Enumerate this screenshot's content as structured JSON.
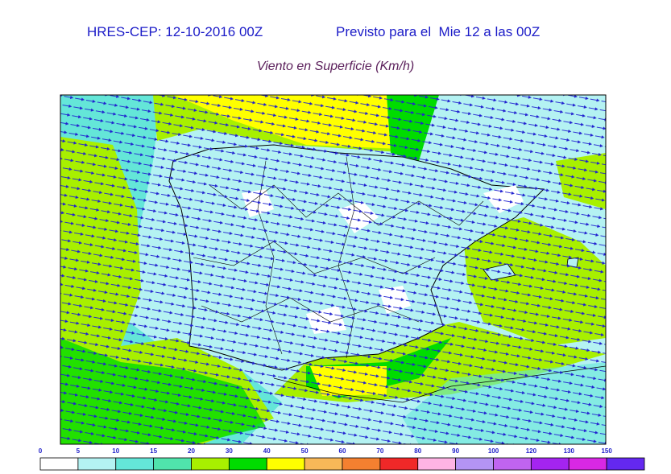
{
  "header": {
    "run": "HRES-CEP: 12-10-2016 00Z",
    "valid": "Previsto para el  Mie 12 a las 00Z",
    "title": "Viento en Superficie (Km/h)"
  },
  "legend": {
    "labels": [
      0,
      5,
      10,
      15,
      20,
      30,
      40,
      50,
      60,
      70,
      80,
      90,
      100,
      120,
      130,
      150
    ],
    "colors": [
      "#ffffff",
      "#b4f2f2",
      "#64e6d8",
      "#50e4ac",
      "#a8f000",
      "#00dc00",
      "#ffff00",
      "#f8b858",
      "#f48030",
      "#f02828",
      "#ffb4e4",
      "#b494f4",
      "#c064f0",
      "#a424f0",
      "#d828e4",
      "#6428f0"
    ]
  }
}
